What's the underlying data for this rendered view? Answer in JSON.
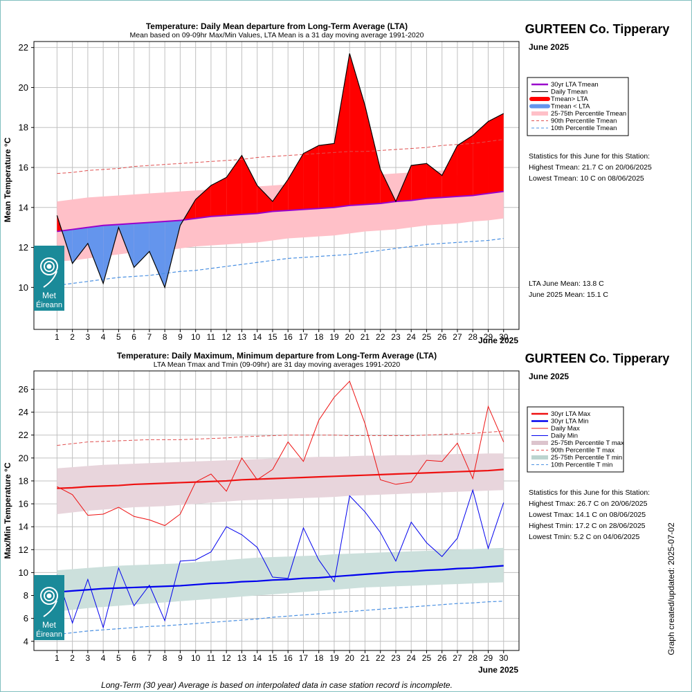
{
  "page": {
    "footer_note": "Long-Term (30 year) Average is based on interpolated data in case station record is incomplete.",
    "updated_text": "Graph created/updated:  2025-07-02",
    "logo_text_1": "Met",
    "logo_text_2": "Éireann"
  },
  "top": {
    "title": "Temperature: Daily Mean departure from Long-Term Average (LTA)",
    "subtitle": "Mean based on 09-09hr Max/Min Values, LTA Mean is a 31 day moving average 1991-2020",
    "station": "GURTEEN Co. Tipperary",
    "month_label": "June 2025",
    "xaxis_month": "June 2025",
    "ylabel": "Mean Temperature °C",
    "legend": [
      "30yr LTA Tmean",
      "Daily Tmean",
      "Tmean> LTA",
      "Tmean < LTA",
      "25-75th Percentile Tmean",
      "90th Percentile Tmean",
      "10th Percentile Tmean"
    ],
    "stats_header": "Statistics for this June for this Station:",
    "stats": [
      "Highest Tmean: 21.7 C on 20/06/2025",
      "Lowest Tmean: 10 C on 08/06/2025"
    ],
    "means": [
      "LTA June Mean: 13.8 C",
      "June 2025 Mean: 15.1 C"
    ]
  },
  "bottom": {
    "title": "Temperature: Daily Maximum, Minimum departure from Long-Term Average (LTA)",
    "subtitle": "LTA Mean Tmax and Tmin (09-09hr) are 31 day moving averages 1991-2020",
    "station": "GURTEEN Co. Tipperary",
    "month_label": "June 2025",
    "xaxis_month": "June 2025",
    "ylabel": "Max/Min Temperature °C",
    "legend": [
      "30yr LTA Max",
      "30yr LTA Min",
      "Daily Max",
      "Daily Min",
      "25-75th Percentile T max",
      "90th Percentile T max",
      "25-75th Percentile T min",
      "10th Percentile T min"
    ],
    "stats_header": "Statistics for this June for this Station:",
    "stats": [
      "Highest Tmax: 26.7 C on 20/06/2025",
      "Lowest Tmax: 14.1 C on 08/06/2025",
      "Highest Tmin: 17.2 C on 28/06/2025",
      "Lowest Tmin: 5.2 C on 04/06/2025"
    ]
  },
  "colors": {
    "lta_mean": "#9900cc",
    "above": "#ff0000",
    "below": "#6495ed",
    "pct_band_mean": "#ffc0c8",
    "pct90": "#e05050",
    "pct10": "#4a90e2",
    "lta_max": "#ee1111",
    "lta_min": "#0000ee",
    "band_max": "#e8d5dc",
    "band_min": "#cce0dc",
    "logo": "#1a8a99"
  },
  "chart_data": [
    {
      "type": "area",
      "title": "Temperature: Daily Mean departure from Long-Term Average (LTA)",
      "xlabel": "June 2025",
      "ylabel": "Mean Temperature °C",
      "x": [
        1,
        2,
        3,
        4,
        5,
        6,
        7,
        8,
        9,
        10,
        11,
        12,
        13,
        14,
        15,
        16,
        17,
        18,
        19,
        20,
        21,
        22,
        23,
        24,
        25,
        26,
        27,
        28,
        29,
        30
      ],
      "xlim": [
        -0.5,
        31
      ],
      "ylim": [
        7.9,
        22.3
      ],
      "yticks": [
        10,
        12,
        14,
        16,
        18,
        20,
        22
      ],
      "grid": true,
      "legend_position": "right",
      "series": [
        {
          "name": "Daily Tmean",
          "values": [
            13.6,
            11.2,
            12.2,
            10.2,
            13.0,
            11.0,
            11.8,
            10.0,
            13.1,
            14.4,
            15.1,
            15.5,
            16.6,
            15.1,
            14.3,
            15.4,
            16.7,
            17.1,
            17.2,
            21.7,
            19.1,
            15.9,
            14.3,
            16.1,
            16.2,
            15.6,
            17.1,
            17.6,
            18.3,
            18.7
          ]
        },
        {
          "name": "30yr LTA Tmean",
          "values": [
            12.8,
            12.9,
            13.0,
            13.1,
            13.15,
            13.2,
            13.25,
            13.3,
            13.35,
            13.45,
            13.55,
            13.6,
            13.65,
            13.7,
            13.8,
            13.85,
            13.9,
            13.95,
            14.0,
            14.1,
            14.15,
            14.2,
            14.3,
            14.35,
            14.45,
            14.5,
            14.55,
            14.6,
            14.7,
            14.8
          ]
        },
        {
          "name": "90th Percentile Tmean",
          "values": [
            15.7,
            15.75,
            15.85,
            15.9,
            15.95,
            16.05,
            16.1,
            16.15,
            16.2,
            16.25,
            16.3,
            16.35,
            16.4,
            16.5,
            16.55,
            16.6,
            16.65,
            16.7,
            16.75,
            16.8,
            16.8,
            16.85,
            16.9,
            16.95,
            17.0,
            17.1,
            17.15,
            17.2,
            17.3,
            17.4
          ]
        },
        {
          "name": "10th Percentile Tmean",
          "values": [
            10.1,
            10.2,
            10.3,
            10.4,
            10.5,
            10.55,
            10.6,
            10.7,
            10.8,
            10.85,
            10.95,
            11.05,
            11.15,
            11.25,
            11.35,
            11.45,
            11.5,
            11.55,
            11.6,
            11.65,
            11.75,
            11.85,
            11.95,
            12.05,
            12.15,
            12.2,
            12.25,
            12.3,
            12.35,
            12.45
          ]
        },
        {
          "name": "25th Percentile Tmean",
          "values": [
            11.3,
            11.35,
            11.45,
            11.55,
            11.65,
            11.75,
            11.8,
            11.85,
            11.95,
            12.05,
            12.1,
            12.15,
            12.2,
            12.25,
            12.35,
            12.45,
            12.5,
            12.55,
            12.6,
            12.7,
            12.8,
            12.85,
            12.9,
            13.0,
            13.1,
            13.15,
            13.2,
            13.3,
            13.35,
            13.45
          ]
        },
        {
          "name": "75th Percentile Tmean",
          "values": [
            14.3,
            14.4,
            14.5,
            14.55,
            14.6,
            14.65,
            14.7,
            14.75,
            14.8,
            14.85,
            14.9,
            14.95,
            15.0,
            15.05,
            15.1,
            15.15,
            15.2,
            15.3,
            15.4,
            15.5,
            15.6,
            15.65,
            15.7,
            15.75,
            15.8,
            15.85,
            15.9,
            15.95,
            16.0,
            16.05
          ]
        }
      ]
    },
    {
      "type": "line",
      "title": "Temperature: Daily Maximum, Minimum departure from Long-Term Average (LTA)",
      "xlabel": "June 2025",
      "ylabel": "Max/Min Temperature °C",
      "x": [
        1,
        2,
        3,
        4,
        5,
        6,
        7,
        8,
        9,
        10,
        11,
        12,
        13,
        14,
        15,
        16,
        17,
        18,
        19,
        20,
        21,
        22,
        23,
        24,
        25,
        26,
        27,
        28,
        29,
        30
      ],
      "xlim": [
        -0.5,
        31
      ],
      "ylim": [
        3.2,
        27.6
      ],
      "yticks": [
        4,
        6,
        8,
        10,
        12,
        14,
        16,
        18,
        20,
        22,
        24,
        26
      ],
      "grid": true,
      "legend_position": "right",
      "series": [
        {
          "name": "Daily Max",
          "values": [
            17.5,
            16.8,
            15.0,
            15.1,
            15.7,
            14.9,
            14.6,
            14.1,
            15.1,
            17.9,
            18.6,
            17.1,
            20.0,
            18.1,
            19.0,
            21.4,
            19.7,
            23.3,
            25.3,
            26.7,
            23.0,
            18.1,
            17.7,
            17.9,
            19.8,
            19.7,
            21.3,
            18.2,
            24.5,
            21.4
          ]
        },
        {
          "name": "Daily Min",
          "values": [
            9.8,
            5.6,
            9.4,
            5.2,
            10.4,
            7.1,
            8.9,
            5.8,
            11.0,
            11.1,
            11.8,
            14.0,
            13.3,
            12.2,
            9.6,
            9.5,
            13.9,
            11.1,
            9.2,
            16.7,
            15.3,
            13.5,
            11.0,
            14.4,
            12.6,
            11.4,
            13.0,
            17.2,
            12.1,
            16.1
          ]
        },
        {
          "name": "30yr LTA Max",
          "values": [
            17.35,
            17.4,
            17.5,
            17.55,
            17.6,
            17.7,
            17.75,
            17.8,
            17.85,
            17.9,
            17.95,
            18.0,
            18.1,
            18.15,
            18.2,
            18.25,
            18.3,
            18.35,
            18.4,
            18.45,
            18.5,
            18.55,
            18.6,
            18.65,
            18.7,
            18.75,
            18.8,
            18.85,
            18.9,
            19.0
          ]
        },
        {
          "name": "30yr LTA Min",
          "values": [
            8.3,
            8.4,
            8.5,
            8.6,
            8.65,
            8.7,
            8.75,
            8.8,
            8.85,
            8.95,
            9.05,
            9.1,
            9.2,
            9.25,
            9.35,
            9.4,
            9.5,
            9.55,
            9.65,
            9.75,
            9.85,
            9.95,
            10.05,
            10.1,
            10.2,
            10.25,
            10.35,
            10.4,
            10.5,
            10.6
          ]
        },
        {
          "name": "90th Percentile T max",
          "values": [
            21.1,
            21.25,
            21.4,
            21.45,
            21.5,
            21.55,
            21.6,
            21.6,
            21.6,
            21.65,
            21.7,
            21.75,
            21.85,
            21.9,
            21.95,
            22.0,
            22.0,
            22.0,
            22.0,
            21.95,
            21.95,
            21.95,
            21.95,
            21.95,
            22.0,
            22.05,
            22.1,
            22.15,
            22.25,
            22.35
          ]
        },
        {
          "name": "10th Percentile T min",
          "values": [
            4.6,
            4.75,
            4.9,
            5.0,
            5.1,
            5.2,
            5.3,
            5.35,
            5.45,
            5.55,
            5.65,
            5.75,
            5.85,
            5.95,
            6.1,
            6.2,
            6.3,
            6.4,
            6.5,
            6.6,
            6.7,
            6.8,
            6.9,
            7.0,
            7.1,
            7.2,
            7.3,
            7.35,
            7.45,
            7.5
          ]
        },
        {
          "name": "25th Percentile T max",
          "values": [
            15.1,
            15.25,
            15.4,
            15.5,
            15.6,
            15.7,
            15.75,
            15.8,
            15.9,
            16.0,
            16.1,
            16.2,
            16.3,
            16.35,
            16.4,
            16.45,
            16.5,
            16.55,
            16.6,
            16.7,
            16.75,
            16.8,
            16.85,
            16.9,
            16.95,
            17.0,
            17.05,
            17.1,
            17.15,
            17.2
          ]
        },
        {
          "name": "75th Percentile T max",
          "values": [
            19.1,
            19.2,
            19.3,
            19.4,
            19.45,
            19.5,
            19.55,
            19.6,
            19.65,
            19.7,
            19.75,
            19.8,
            19.85,
            19.9,
            19.95,
            20.0,
            20.05,
            20.1,
            20.1,
            20.15,
            20.2,
            20.2,
            20.25,
            20.25,
            20.3,
            20.3,
            20.35,
            20.35,
            20.4,
            20.4
          ]
        },
        {
          "name": "25th Percentile T min",
          "values": [
            6.6,
            6.75,
            6.9,
            7.0,
            7.1,
            7.2,
            7.3,
            7.4,
            7.5,
            7.6,
            7.7,
            7.8,
            7.9,
            8.0,
            8.1,
            8.2,
            8.3,
            8.4,
            8.5,
            8.6,
            8.7,
            8.75,
            8.8,
            8.85,
            8.9,
            8.95,
            9.0,
            9.05,
            9.1,
            9.15
          ]
        },
        {
          "name": "75th Percentile T min",
          "values": [
            10.2,
            10.3,
            10.4,
            10.5,
            10.6,
            10.65,
            10.7,
            10.75,
            10.8,
            10.9,
            11.0,
            11.1,
            11.2,
            11.3,
            11.35,
            11.4,
            11.45,
            11.5,
            11.6,
            11.65,
            11.7,
            11.75,
            11.8,
            11.85,
            11.9,
            11.95,
            12.0,
            12.05,
            12.1,
            12.15
          ]
        }
      ]
    }
  ]
}
